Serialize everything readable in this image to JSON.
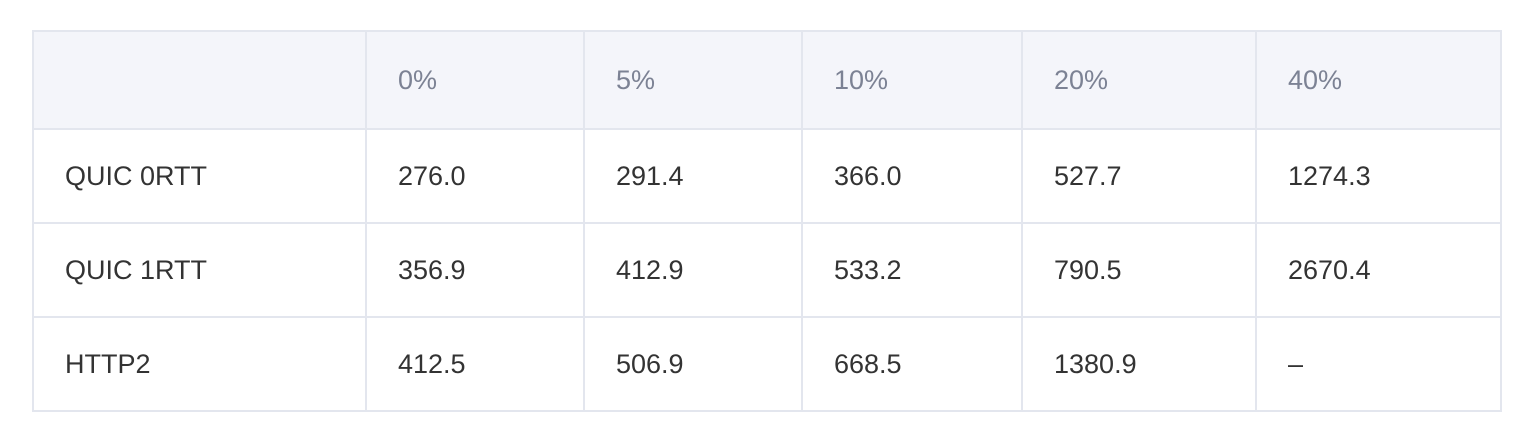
{
  "table": {
    "headers": [
      "",
      "0%",
      "5%",
      "10%",
      "20%",
      "40%"
    ],
    "rows": [
      {
        "label": "QUIC 0RTT",
        "cells": [
          "276.0",
          "291.4",
          "366.0",
          "527.7",
          "1274.3"
        ]
      },
      {
        "label": "QUIC 1RTT",
        "cells": [
          "356.9",
          "412.9",
          "533.2",
          "790.5",
          "2670.4"
        ]
      },
      {
        "label": "HTTP2",
        "cells": [
          "412.5",
          "506.9",
          "668.5",
          "1380.9",
          "–"
        ]
      }
    ]
  }
}
